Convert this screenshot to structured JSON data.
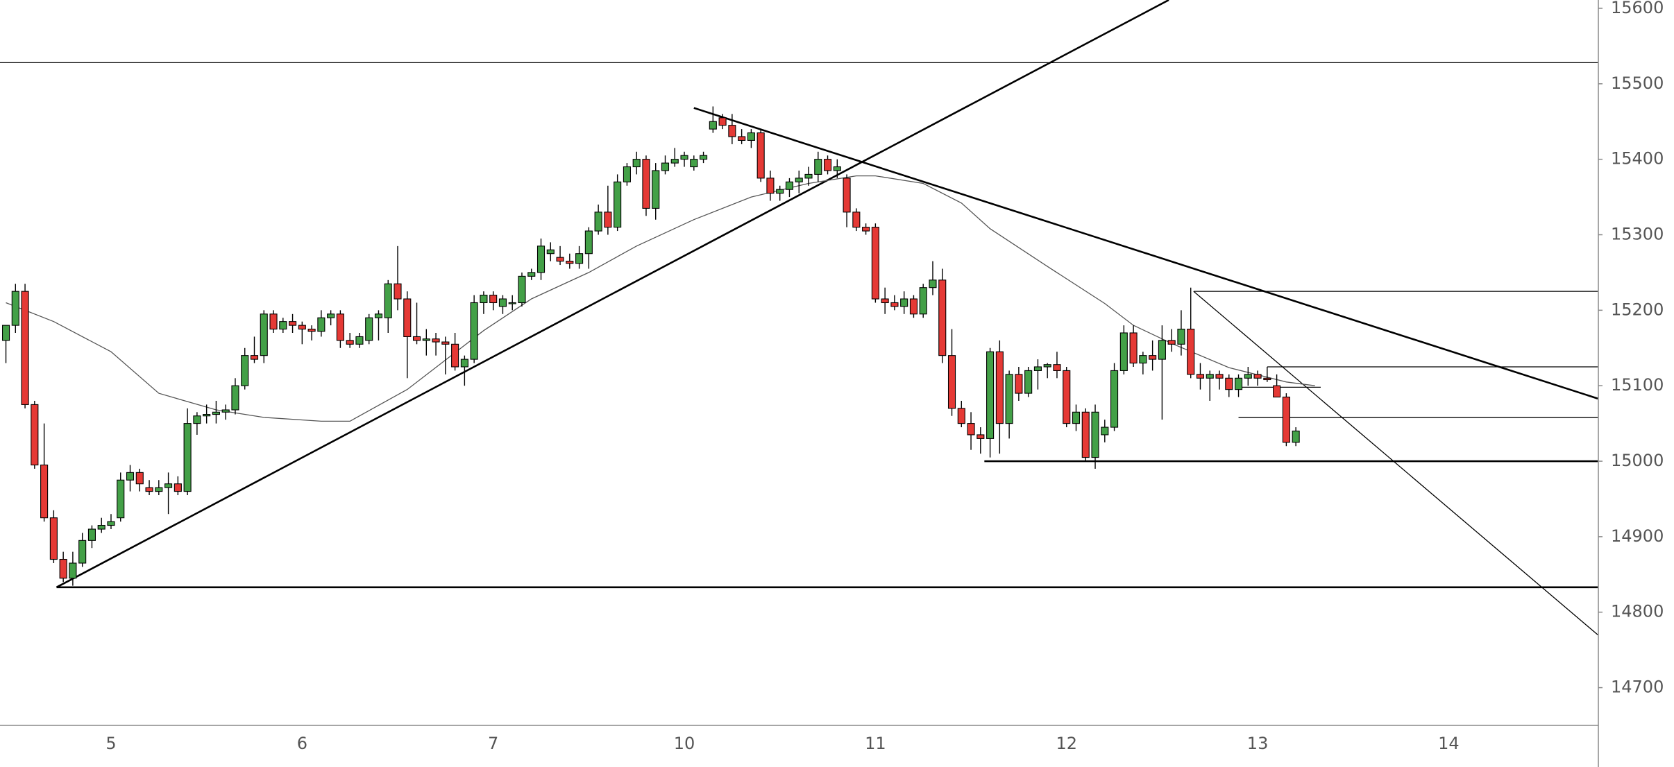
{
  "chart_data": {
    "type": "candlestick",
    "up_color": "#43a047",
    "down_color": "#e53935",
    "categories": [
      null,
      null,
      null,
      null,
      null,
      null,
      null,
      null,
      null,
      null,
      null,
      "5",
      null,
      null,
      null,
      null,
      null,
      null,
      null,
      null,
      null,
      null,
      null,
      null,
      null,
      null,
      null,
      null,
      null,
      null,
      null,
      "6",
      null,
      null,
      null,
      null,
      null,
      null,
      null,
      null,
      null,
      null,
      null,
      null,
      null,
      null,
      null,
      null,
      null,
      null,
      null,
      "7",
      null,
      null,
      null,
      null,
      null,
      null,
      null,
      null,
      null,
      null,
      null,
      null,
      null,
      null,
      null,
      null,
      null,
      null,
      null,
      "10",
      null,
      null,
      null,
      null,
      null,
      null,
      null,
      null,
      null,
      null,
      null,
      null,
      null,
      null,
      null,
      null,
      null,
      null,
      null,
      "11",
      null,
      null,
      null,
      null,
      null,
      null,
      null,
      null,
      null,
      null,
      null,
      null,
      null,
      null,
      null,
      null,
      null,
      null,
      null,
      "12",
      null,
      null,
      null,
      null,
      null,
      null,
      null,
      null,
      null,
      null,
      null,
      null,
      null,
      null,
      null,
      null,
      null,
      null,
      null,
      "13",
      null,
      null,
      null,
      null,
      null,
      null,
      null,
      null,
      null,
      null,
      null,
      null,
      null,
      null,
      null,
      null,
      null,
      null,
      null,
      "14",
      null,
      null,
      null,
      null,
      null,
      null,
      null,
      null,
      null,
      null,
      null,
      null,
      null,
      null,
      null
    ],
    "open": [
      15160,
      15180,
      15225,
      15075,
      14995,
      14925,
      14870,
      14845,
      14865,
      14895,
      14910,
      14915,
      14925,
      14975,
      14985,
      14965,
      14960,
      14965,
      14970,
      14960,
      15050,
      15060,
      15062,
      15065,
      15068,
      15100,
      15140,
      15140,
      15195,
      15175,
      15185,
      15180,
      15175,
      15172,
      15190,
      15195,
      15160,
      15155,
      15160,
      15190,
      15190,
      15235,
      15215,
      15165,
      15160,
      15162,
      15158,
      15155,
      15125,
      15135,
      15210,
      15220,
      15205,
      15210,
      15210,
      15245,
      15250,
      15275,
      15270,
      15265,
      15262,
      15275,
      15305,
      15330,
      15310,
      15370,
      15390,
      15400,
      15335,
      15385,
      15395,
      15400,
      15390,
      15400,
      15440,
      15455,
      15445,
      15430,
      15425,
      15435,
      15375,
      15355,
      15360,
      15370,
      15375,
      15380,
      15400,
      15385,
      15375,
      15330,
      15310,
      15310,
      15215,
      15210,
      15205,
      15215,
      15195,
      15230,
      15240,
      15140,
      15070,
      15050,
      15035,
      15030,
      15145,
      15050,
      15115,
      15090,
      15120,
      15125,
      15128,
      15120,
      15050,
      15065,
      15005,
      15035,
      15045,
      15120,
      15170,
      15130,
      15140,
      15135,
      15160,
      15155,
      15175,
      15115,
      15110,
      15115,
      15110,
      15095,
      15110,
      15115,
      15110,
      15100,
      15085,
      15025,
      null,
      null,
      null,
      null,
      null,
      null,
      null,
      null,
      null,
      null,
      null,
      null,
      null,
      null,
      null,
      null,
      null,
      null,
      null,
      null,
      null,
      null,
      null,
      null,
      null,
      null,
      null,
      null,
      null,
      null,
      null
    ],
    "high": [
      15180,
      15235,
      15235,
      15080,
      15050,
      14935,
      14880,
      14880,
      14905,
      14915,
      14925,
      14930,
      14985,
      14995,
      14990,
      14975,
      14975,
      14985,
      14980,
      15070,
      15065,
      15075,
      15080,
      15075,
      15110,
      15150,
      15165,
      15200,
      15200,
      15190,
      15195,
      15185,
      15180,
      15200,
      15200,
      15200,
      15170,
      15170,
      15195,
      15200,
      15240,
      15285,
      15225,
      15210,
      15175,
      15170,
      15165,
      15170,
      15140,
      15220,
      15225,
      15225,
      15220,
      15220,
      15250,
      15255,
      15295,
      15290,
      15285,
      15275,
      15285,
      15310,
      15340,
      15365,
      15380,
      15395,
      15410,
      15405,
      15395,
      15405,
      15415,
      15410,
      15405,
      15410,
      15470,
      15460,
      15460,
      15440,
      15440,
      15440,
      15385,
      15365,
      15375,
      15385,
      15390,
      15410,
      15405,
      15400,
      15380,
      15335,
      15315,
      15315,
      15230,
      15220,
      15225,
      15220,
      15235,
      15265,
      15255,
      15175,
      15080,
      15065,
      15045,
      15150,
      15160,
      15120,
      15125,
      15125,
      15135,
      15130,
      15145,
      15125,
      15075,
      15070,
      15075,
      15055,
      15130,
      15180,
      15180,
      15145,
      15160,
      15180,
      15175,
      15200,
      15230,
      15130,
      15120,
      15120,
      15115,
      15115,
      15125,
      15120,
      15125,
      15115,
      15090,
      15045,
      null,
      null,
      null,
      null,
      null,
      null,
      null,
      null,
      null,
      null,
      null,
      null,
      null,
      null,
      null,
      null,
      null,
      null,
      null,
      null,
      null,
      null,
      null,
      null,
      null,
      null,
      null,
      null,
      null,
      null,
      null
    ],
    "low": [
      15130,
      15170,
      15070,
      14990,
      14920,
      14865,
      14840,
      14835,
      14860,
      14885,
      14905,
      14910,
      14920,
      14960,
      14960,
      14955,
      14955,
      14930,
      14955,
      14955,
      15035,
      15050,
      15050,
      15055,
      15062,
      15095,
      15130,
      15130,
      15170,
      15170,
      15170,
      15155,
      15160,
      15165,
      15180,
      15150,
      15150,
      15150,
      15155,
      15160,
      15170,
      15200,
      15110,
      15155,
      15140,
      15140,
      15115,
      15120,
      15100,
      15130,
      15195,
      15200,
      15195,
      15200,
      15205,
      15240,
      15240,
      15265,
      15260,
      15255,
      15255,
      15255,
      15300,
      15300,
      15305,
      15365,
      15380,
      15325,
      15320,
      15380,
      15390,
      15390,
      15385,
      15395,
      15435,
      15440,
      15420,
      15420,
      15415,
      15370,
      15345,
      15345,
      15350,
      15355,
      15365,
      15370,
      15380,
      15375,
      15310,
      15305,
      15300,
      15210,
      15195,
      15200,
      15195,
      15190,
      15190,
      15220,
      15130,
      15060,
      15045,
      15015,
      15010,
      15005,
      15010,
      15030,
      15080,
      15085,
      15095,
      15110,
      15110,
      15045,
      15040,
      15000,
      14990,
      15025,
      15040,
      15115,
      15125,
      15115,
      15120,
      15055,
      15145,
      15140,
      15110,
      15095,
      15080,
      15095,
      15085,
      15085,
      15100,
      15100,
      15105,
      15085,
      15020,
      15020,
      null,
      null,
      null,
      null,
      null,
      null,
      null,
      null,
      null,
      null,
      null,
      null,
      null,
      null,
      null,
      null,
      null,
      null,
      null,
      null,
      null,
      null,
      null,
      null,
      null,
      null,
      null,
      null,
      null,
      null,
      null
    ],
    "close": [
      15180,
      15225,
      15075,
      14995,
      14925,
      14870,
      14845,
      14865,
      14895,
      14910,
      14915,
      14920,
      14975,
      14985,
      14970,
      14960,
      14965,
      14970,
      14960,
      15050,
      15060,
      15062,
      15065,
      15068,
      15100,
      15140,
      15135,
      15195,
      15175,
      15185,
      15180,
      15175,
      15172,
      15190,
      15195,
      15160,
      15155,
      15165,
      15190,
      15195,
      15235,
      15215,
      15165,
      15160,
      15162,
      15158,
      15155,
      15125,
      15135,
      15210,
      15220,
      15210,
      15215,
      15210,
      15245,
      15250,
      15285,
      15280,
      15265,
      15262,
      15275,
      15305,
      15330,
      15310,
      15370,
      15390,
      15400,
      15335,
      15385,
      15395,
      15400,
      15405,
      15400,
      15405,
      15450,
      15445,
      15430,
      15425,
      15435,
      15375,
      15355,
      15360,
      15370,
      15375,
      15380,
      15400,
      15385,
      15390,
      15330,
      15310,
      15305,
      15215,
      15210,
      15205,
      15215,
      15195,
      15230,
      15240,
      15140,
      15070,
      15050,
      15035,
      15030,
      15145,
      15050,
      15115,
      15090,
      15120,
      15125,
      15128,
      15120,
      15050,
      15065,
      15005,
      15065,
      15045,
      15120,
      15170,
      15130,
      15140,
      15135,
      15160,
      15155,
      15175,
      15115,
      15110,
      15115,
      15110,
      15095,
      15110,
      15115,
      15110,
      15108,
      15085,
      15025,
      15040,
      null,
      null,
      null,
      null,
      null,
      null,
      null,
      null,
      null,
      null,
      null,
      null,
      null,
      null,
      null,
      null,
      null,
      null,
      null,
      null,
      null,
      null,
      null,
      null,
      null,
      null,
      null,
      null,
      null,
      null,
      null
    ],
    "moving_average": {
      "color": "#555555",
      "x": [
        0,
        5,
        11,
        16,
        22,
        27,
        33,
        36,
        42,
        50,
        55,
        61,
        66,
        72,
        78,
        84,
        89,
        91,
        96,
        100,
        103,
        109,
        115,
        118,
        122,
        128,
        134,
        137
      ],
      "values": [
        15210,
        15185,
        15145,
        15090,
        15068,
        15058,
        15053,
        15053,
        15095,
        15173,
        15215,
        15250,
        15285,
        15320,
        15350,
        15368,
        15378,
        15378,
        15368,
        15342,
        15308,
        15258,
        15209,
        15180,
        15156,
        15124,
        15105,
        15100
      ]
    },
    "trendlines": [
      {
        "x": [
          -0.62,
          166.6
        ],
        "values": [
          15528,
          15528
        ],
        "width": 1
      },
      {
        "x": [
          5.3,
          166.6
        ],
        "values": [
          14833,
          14833
        ],
        "width": 2
      },
      {
        "x": [
          5.3,
          121.7
        ],
        "values": [
          14833,
          15611
        ],
        "width": 2
      },
      {
        "x": [
          72,
          166.6
        ],
        "values": [
          15468,
          15083
        ],
        "width": 2
      },
      {
        "x": [
          102.4,
          166.6
        ],
        "values": [
          15000,
          15000
        ],
        "width": 2
      },
      {
        "x": [
          124.3,
          166.6
        ],
        "values": [
          15225,
          15225
        ],
        "width": 1
      },
      {
        "x": [
          124.3,
          166.6
        ],
        "values": [
          15225,
          14770
        ],
        "width": 1
      },
      {
        "x": [
          132,
          166.6
        ],
        "values": [
          15125,
          15125
        ],
        "width": 1
      },
      {
        "x": [
          129,
          166.6
        ],
        "values": [
          15058,
          15058
        ],
        "width": 1
      },
      {
        "x": [
          129,
          137.6
        ],
        "values": [
          15098,
          15098
        ],
        "width": 1
      }
    ],
    "ylim": [
      14650,
      15611
    ],
    "yticks": [
      14700,
      14800,
      14900,
      15000,
      15100,
      15200,
      15300,
      15400,
      15500,
      15600
    ]
  }
}
